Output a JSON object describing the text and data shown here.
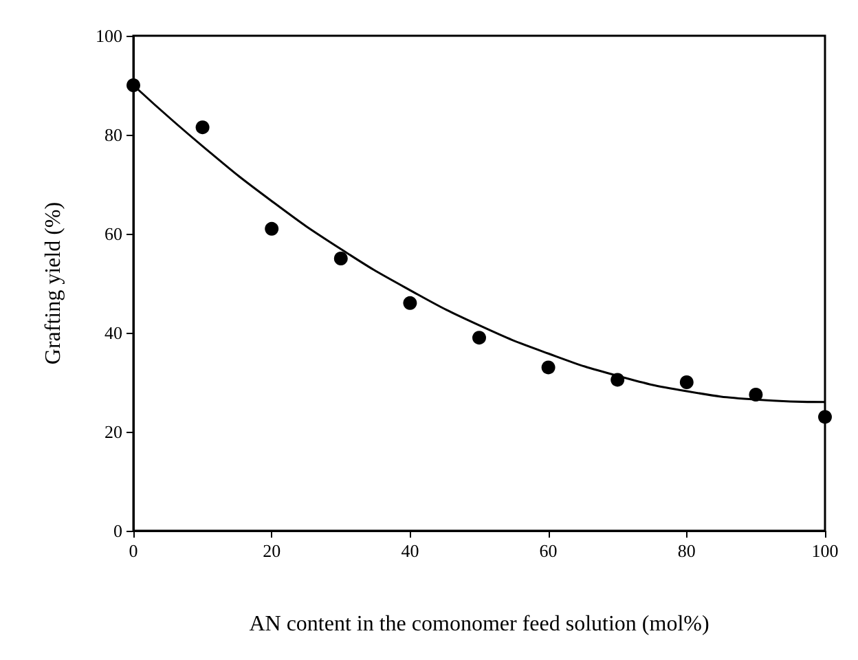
{
  "chart_data": {
    "type": "scatter",
    "xlabel": "AN content in the comonomer feed solution (mol%)",
    "ylabel": "Grafting yield (%)",
    "xlim": [
      0,
      100
    ],
    "ylim": [
      0,
      100
    ],
    "xticks": [
      0,
      20,
      40,
      60,
      80,
      100
    ],
    "yticks": [
      0,
      20,
      40,
      60,
      80,
      100
    ],
    "grid": false,
    "series": [
      {
        "color": "#000000",
        "marker": "circle",
        "x": [
          0,
          10,
          20,
          30,
          40,
          50,
          60,
          70,
          80,
          90,
          100
        ],
        "values": [
          90,
          81.5,
          61,
          55,
          46,
          39,
          33,
          30.5,
          30,
          27.5,
          23
        ]
      },
      {
        "type": "line",
        "color": "#000000",
        "marker": "none",
        "line_style": "solid",
        "x": [
          0,
          10,
          20,
          30,
          40,
          50,
          60,
          70,
          80,
          90,
          100
        ],
        "values": [
          90,
          77.7,
          66.6,
          56.9,
          48.6,
          41.5,
          35.8,
          31.3,
          28.2,
          26.5,
          26
        ]
      }
    ]
  }
}
